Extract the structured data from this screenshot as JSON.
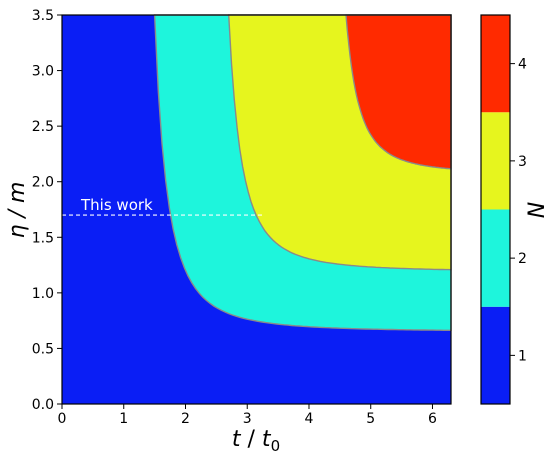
{
  "chart_data": {
    "type": "heatmap",
    "xlabel_main": "t",
    "xlabel_sep": " / ",
    "xlabel_sub_base": "t",
    "xlabel_sub_index": "0",
    "ylabel": "η / m",
    "colorbar_label": "N",
    "xlim": [
      0,
      6.3
    ],
    "ylim": [
      0,
      3.5
    ],
    "xticks": [
      "0",
      "1",
      "2",
      "3",
      "4",
      "5",
      "6"
    ],
    "yticks": [
      "0.0",
      "0.5",
      "1.0",
      "1.5",
      "2.0",
      "2.5",
      "3.0",
      "3.5"
    ],
    "levels": [
      {
        "value": 1,
        "label": "1",
        "color": "#0a1ef5"
      },
      {
        "value": 2,
        "label": "2",
        "color": "#1ef5dc"
      },
      {
        "value": 3,
        "label": "3",
        "color": "#e6f51e"
      },
      {
        "value": 4,
        "label": "4",
        "color": "#ff2a00"
      }
    ],
    "boundaries": [
      {
        "between": [
          1,
          2
        ],
        "eta_min": 0.65,
        "t_asymptote": 1.5
      },
      {
        "between": [
          2,
          3
        ],
        "eta_min": 1.19,
        "t_asymptote": 2.7
      },
      {
        "between": [
          3,
          4
        ],
        "eta_min": 2.07,
        "t_asymptote": 4.6
      }
    ],
    "annotation": {
      "text": "This work",
      "eta": 1.7,
      "t_end": 3.25
    }
  }
}
